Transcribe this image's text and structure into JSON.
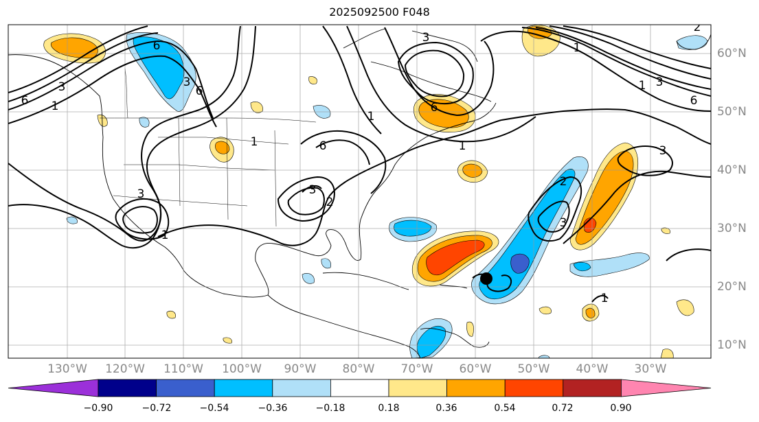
{
  "title": "2025092500 F048",
  "lon_labels": [
    "130°W",
    "120°W",
    "110°W",
    "100°W",
    "90°W",
    "80°W",
    "70°W",
    "60°W",
    "50°W",
    "40°W",
    "30°W"
  ],
  "lat_labels": [
    "60°N",
    "50°N",
    "40°N",
    "30°N",
    "20°N",
    "10°N"
  ],
  "colorbar": {
    "ticks": [
      "−0.90",
      "−0.72",
      "−0.54",
      "−0.36",
      "−0.18",
      "0.18",
      "0.36",
      "0.54",
      "0.72",
      "0.90"
    ],
    "colors": [
      "#9b30d9",
      "#00008b",
      "#3a5fcd",
      "#00bfff",
      "#b0e0f8",
      "#ffffff",
      "#ffe88a",
      "#ffa500",
      "#ff4500",
      "#b22222",
      "#ff85b0"
    ]
  },
  "contour_labels": [
    "6",
    "3",
    "1",
    "6",
    "3",
    "1",
    "6",
    "3",
    "6",
    "3",
    "1",
    "2",
    "1",
    "3",
    "2",
    "1",
    "3",
    "6",
    "3",
    "6",
    "1",
    "2",
    "1",
    "3",
    "1"
  ],
  "marker": "storm-center-dot"
}
